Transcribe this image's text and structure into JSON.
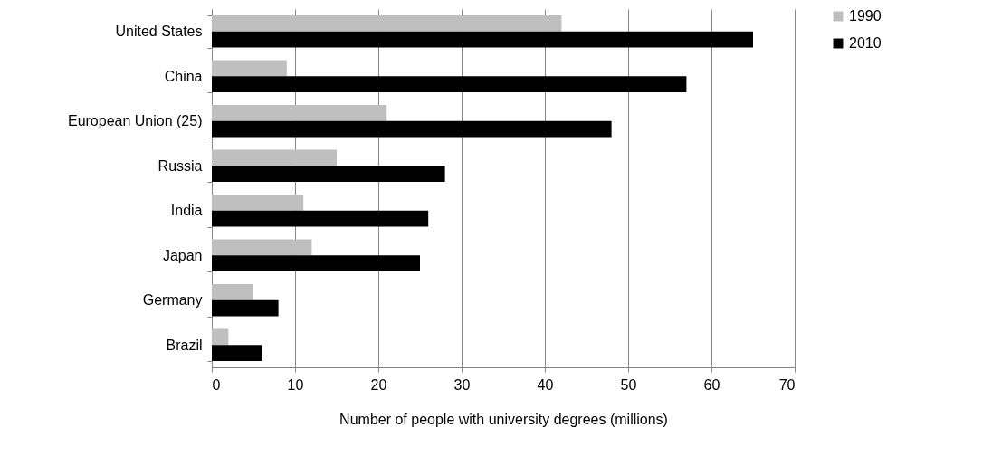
{
  "chart_data": {
    "type": "bar",
    "orientation": "horizontal",
    "xlabel": "Number of people with university degrees (millions)",
    "categories": [
      "United States",
      "China",
      "European Union (25)",
      "Russia",
      "India",
      "Japan",
      "Germany",
      "Brazil"
    ],
    "series": [
      {
        "name": "1990",
        "color": "#bfbfbf",
        "values": [
          42,
          9,
          21,
          15,
          11,
          12,
          5,
          2
        ]
      },
      {
        "name": "2010",
        "color": "#000000",
        "values": [
          65,
          57,
          48,
          28,
          26,
          25,
          8,
          6
        ]
      }
    ],
    "xlim": [
      0,
      70
    ],
    "xticks": [
      0,
      10,
      20,
      30,
      40,
      50,
      60,
      70
    ],
    "grid": "x",
    "legend": "right"
  }
}
